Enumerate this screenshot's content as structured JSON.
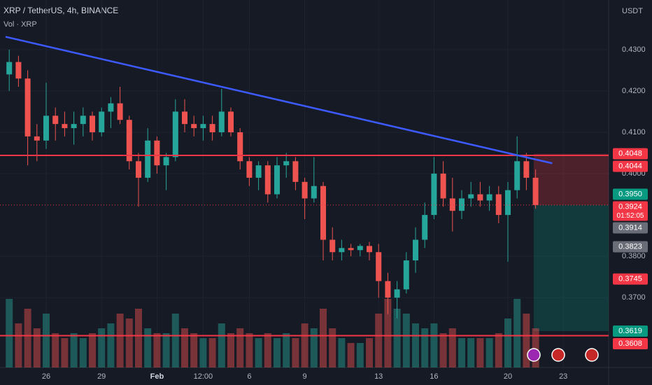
{
  "chart_data": {
    "type": "candlestick",
    "title": "XRP / TetherUS, 4h, BINANCE",
    "subtitle": "Vol · XRP",
    "y_axis_unit": "USDT",
    "up_color": "#26a69a",
    "down_color": "#ef5350",
    "categories": [
      null,
      null,
      null,
      null,
      "26",
      null,
      null,
      null,
      null,
      null,
      "29",
      null,
      null,
      null,
      null,
      null,
      "Feb",
      null,
      null,
      null,
      null,
      "12:00",
      null,
      null,
      null,
      null,
      "6",
      null,
      null,
      null,
      null,
      null,
      "9",
      null,
      null,
      null,
      null,
      null,
      null,
      null,
      "13",
      null,
      null,
      null,
      null,
      null,
      "16",
      null,
      null,
      null,
      null,
      null,
      null,
      null,
      "20",
      null,
      null,
      null,
      null,
      null,
      "23",
      null,
      null,
      null,
      null
    ],
    "open": [
      0.424,
      0.427,
      0.423,
      0.409,
      0.408,
      0.414,
      0.412,
      0.411,
      0.412,
      0.414,
      0.41,
      0.415,
      0.417,
      0.413,
      0.403,
      0.399,
      0.408,
      0.402,
      0.404,
      0.415,
      0.412,
      0.411,
      0.412,
      0.41,
      0.415,
      0.41,
      0.403,
      0.399,
      0.402,
      0.395,
      0.402,
      0.403,
      0.398,
      0.394,
      0.397,
      0.384,
      0.381,
      0.382,
      0.3815,
      0.3825,
      0.381,
      0.374,
      0.37,
      0.372,
      0.379,
      0.384,
      0.39,
      0.4,
      0.394,
      0.391,
      0.394,
      0.395,
      0.3935,
      0.395,
      0.39,
      0.396,
      0.403,
      0.399,
      null,
      null,
      null,
      null,
      null,
      null,
      null
    ],
    "high": [
      0.43,
      0.4285,
      0.425,
      0.412,
      0.422,
      0.416,
      0.415,
      0.415,
      0.416,
      0.415,
      0.416,
      0.4185,
      0.421,
      0.414,
      0.405,
      0.411,
      0.409,
      0.405,
      0.418,
      0.418,
      0.414,
      0.414,
      0.414,
      0.4205,
      0.416,
      0.411,
      0.404,
      0.403,
      0.403,
      0.404,
      0.405,
      0.404,
      0.399,
      0.404,
      0.398,
      0.387,
      0.384,
      0.383,
      0.383,
      0.3835,
      0.383,
      0.376,
      0.374,
      0.381,
      0.387,
      0.393,
      0.404,
      0.403,
      0.399,
      0.396,
      0.398,
      0.398,
      0.397,
      0.397,
      0.398,
      0.409,
      0.405,
      0.401,
      null,
      null,
      null,
      null,
      null,
      null,
      null
    ],
    "low": [
      0.42,
      0.421,
      0.402,
      0.403,
      0.406,
      0.408,
      0.409,
      0.407,
      0.409,
      0.408,
      0.409,
      0.411,
      0.412,
      0.401,
      0.392,
      0.398,
      0.4,
      0.396,
      0.403,
      0.41,
      0.409,
      0.408,
      0.408,
      0.409,
      0.409,
      0.401,
      0.397,
      0.396,
      0.393,
      0.394,
      0.399,
      0.396,
      0.389,
      0.393,
      0.379,
      0.379,
      0.379,
      0.38,
      0.38,
      0.379,
      0.37,
      0.366,
      0.365,
      0.371,
      0.376,
      0.382,
      0.389,
      0.392,
      0.386,
      0.389,
      0.392,
      0.392,
      0.391,
      0.388,
      0.3787,
      0.394,
      0.396,
      0.3915,
      null,
      null,
      null,
      null,
      null,
      null,
      null
    ],
    "close": [
      0.427,
      0.423,
      0.409,
      0.408,
      0.414,
      0.412,
      0.411,
      0.412,
      0.414,
      0.41,
      0.415,
      0.417,
      0.413,
      0.403,
      0.399,
      0.408,
      0.402,
      0.404,
      0.415,
      0.412,
      0.411,
      0.412,
      0.41,
      0.415,
      0.41,
      0.403,
      0.399,
      0.402,
      0.395,
      0.402,
      0.403,
      0.398,
      0.394,
      0.397,
      0.384,
      0.381,
      0.382,
      0.3815,
      0.3825,
      0.381,
      0.374,
      0.37,
      0.372,
      0.379,
      0.384,
      0.39,
      0.4,
      0.394,
      0.391,
      0.394,
      0.395,
      0.3935,
      0.395,
      0.39,
      0.396,
      0.403,
      0.399,
      0.3924,
      null,
      null,
      null,
      null,
      null,
      null,
      null
    ],
    "volume": [
      70,
      45,
      60,
      40,
      55,
      35,
      30,
      35,
      30,
      35,
      40,
      45,
      55,
      50,
      60,
      40,
      35,
      35,
      55,
      40,
      35,
      30,
      30,
      45,
      35,
      40,
      35,
      30,
      35,
      30,
      35,
      30,
      45,
      40,
      60,
      40,
      30,
      25,
      25,
      30,
      55,
      70,
      60,
      55,
      45,
      40,
      45,
      35,
      40,
      30,
      30,
      30,
      30,
      35,
      50,
      70,
      55,
      40,
      null,
      null,
      null,
      null,
      null,
      null,
      null
    ],
    "volume_lim": [
      0,
      100
    ],
    "ylim": [
      0.3531,
      0.442
    ],
    "yticks": [
      {
        "value": 0.43,
        "label": "0.4300"
      },
      {
        "value": 0.42,
        "label": "0.4200"
      },
      {
        "value": 0.41,
        "label": "0.4100"
      },
      {
        "value": 0.4,
        "label": "0.4000"
      },
      {
        "value": 0.38,
        "label": "0.3800"
      },
      {
        "value": 0.37,
        "label": "0.3700"
      }
    ],
    "price_labels": [
      {
        "value": 0.4048,
        "label": "0.4048",
        "color": "#f23645"
      },
      {
        "value": 0.4044,
        "label": "0.4044",
        "color": "#f23645"
      },
      {
        "value": 0.395,
        "label": "0.3950",
        "color": "#089981"
      },
      {
        "value": 0.3924,
        "label": "0.3924",
        "color": "#f23645"
      },
      {
        "value": 0.3914,
        "label": "0.3914",
        "color": "#6a6d78"
      },
      {
        "value": 0.3823,
        "label": "0.3823",
        "color": "#6a6d78"
      },
      {
        "value": 0.3745,
        "label": "0.3745",
        "color": "#f23645"
      },
      {
        "value": 0.3619,
        "label": "0.3619",
        "color": "#089981"
      },
      {
        "value": 0.3608,
        "label": "0.3608",
        "color": "#f23645"
      }
    ],
    "countdown": "01:52:05",
    "hlines": [
      {
        "value": 0.4044,
        "color": "#f23645"
      },
      {
        "value": 0.3608,
        "color": "#f23645"
      }
    ],
    "trendline": {
      "x": [
        -0.4,
        58.8
      ],
      "y": [
        0.4331,
        0.4025
      ],
      "color": "#3d5afe"
    },
    "position": {
      "start": 56.8,
      "stop": 0.4048,
      "entry": 0.3924,
      "target": 0.3619
    }
  }
}
